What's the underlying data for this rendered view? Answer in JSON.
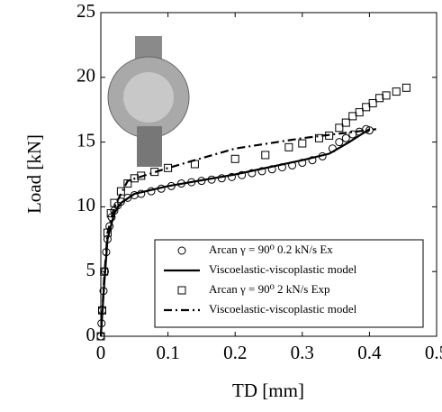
{
  "chart_data": {
    "type": "line",
    "xlabel": "TD [mm]",
    "ylabel": "Load [kN]",
    "xlim": [
      0,
      0.5
    ],
    "xticks": [
      0,
      0.1,
      0.2,
      0.3,
      0.4,
      0.5
    ],
    "ylim": [
      0,
      25
    ],
    "yticks": [
      0,
      5,
      10,
      15,
      20,
      25
    ],
    "grid": false,
    "legend": "lower right",
    "series": [
      {
        "name": "Arcan γ = 90⁰ 0.2 kN/s Ex",
        "color": "#000000",
        "marker": "circle",
        "line": "none",
        "x": [
          0,
          0.001,
          0.002,
          0.004,
          0.006,
          0.008,
          0.01,
          0.013,
          0.016,
          0.02,
          0.025,
          0.03,
          0.04,
          0.05,
          0.06,
          0.075,
          0.09,
          0.105,
          0.12,
          0.135,
          0.15,
          0.165,
          0.18,
          0.195,
          0.21,
          0.225,
          0.24,
          0.255,
          0.27,
          0.285,
          0.3,
          0.315,
          0.33,
          0.345,
          0.355,
          0.365,
          0.375,
          0.385,
          0.395,
          0.4
        ],
        "values": [
          0,
          1,
          2,
          3.5,
          5,
          6.5,
          7.5,
          8.5,
          9.2,
          9.7,
          10.1,
          10.4,
          10.7,
          10.9,
          11.0,
          11.2,
          11.4,
          11.6,
          11.8,
          11.9,
          12.0,
          12.1,
          12.2,
          12.3,
          12.45,
          12.6,
          12.75,
          12.9,
          13.05,
          13.2,
          13.4,
          13.6,
          13.9,
          14.5,
          15.0,
          15.3,
          15.6,
          15.8,
          16.0,
          15.9
        ]
      },
      {
        "name": "Viscoelastic-viscoplastic model",
        "color": "#000000",
        "marker": "none",
        "line": "solid",
        "x": [
          0,
          0.005,
          0.01,
          0.02,
          0.03,
          0.05,
          0.1,
          0.2,
          0.3,
          0.34,
          0.37,
          0.4
        ],
        "values": [
          0,
          4,
          7.5,
          9.5,
          10.3,
          11.0,
          11.6,
          12.5,
          13.6,
          14.1,
          15.0,
          16.0
        ]
      },
      {
        "name": "Arcan γ = 90⁰ 2 kN/s Exp",
        "color": "#000000",
        "marker": "square",
        "line": "none",
        "x": [
          0,
          0.002,
          0.005,
          0.01,
          0.015,
          0.02,
          0.03,
          0.04,
          0.05,
          0.06,
          0.08,
          0.1,
          0.14,
          0.2,
          0.245,
          0.28,
          0.3,
          0.325,
          0.34,
          0.355,
          0.365,
          0.375,
          0.385,
          0.395,
          0.405,
          0.415,
          0.425,
          0.44,
          0.455
        ],
        "values": [
          0,
          2,
          5,
          8,
          9.5,
          10.3,
          11.2,
          11.8,
          12.2,
          12.4,
          12.7,
          13.0,
          13.3,
          13.7,
          14.0,
          14.6,
          14.9,
          15.3,
          15.5,
          16.1,
          16.5,
          17.0,
          17.3,
          17.7,
          18.0,
          18.4,
          18.6,
          18.9,
          19.2
        ]
      },
      {
        "name": "Viscoelastic-viscoplastic model",
        "color": "#000000",
        "marker": "none",
        "line": "dashdot",
        "x": [
          0,
          0.005,
          0.01,
          0.02,
          0.04,
          0.1,
          0.2,
          0.3,
          0.41
        ],
        "values": [
          0,
          4.5,
          8,
          10,
          12,
          13.0,
          14.5,
          15.3,
          16.0
        ]
      }
    ]
  }
}
